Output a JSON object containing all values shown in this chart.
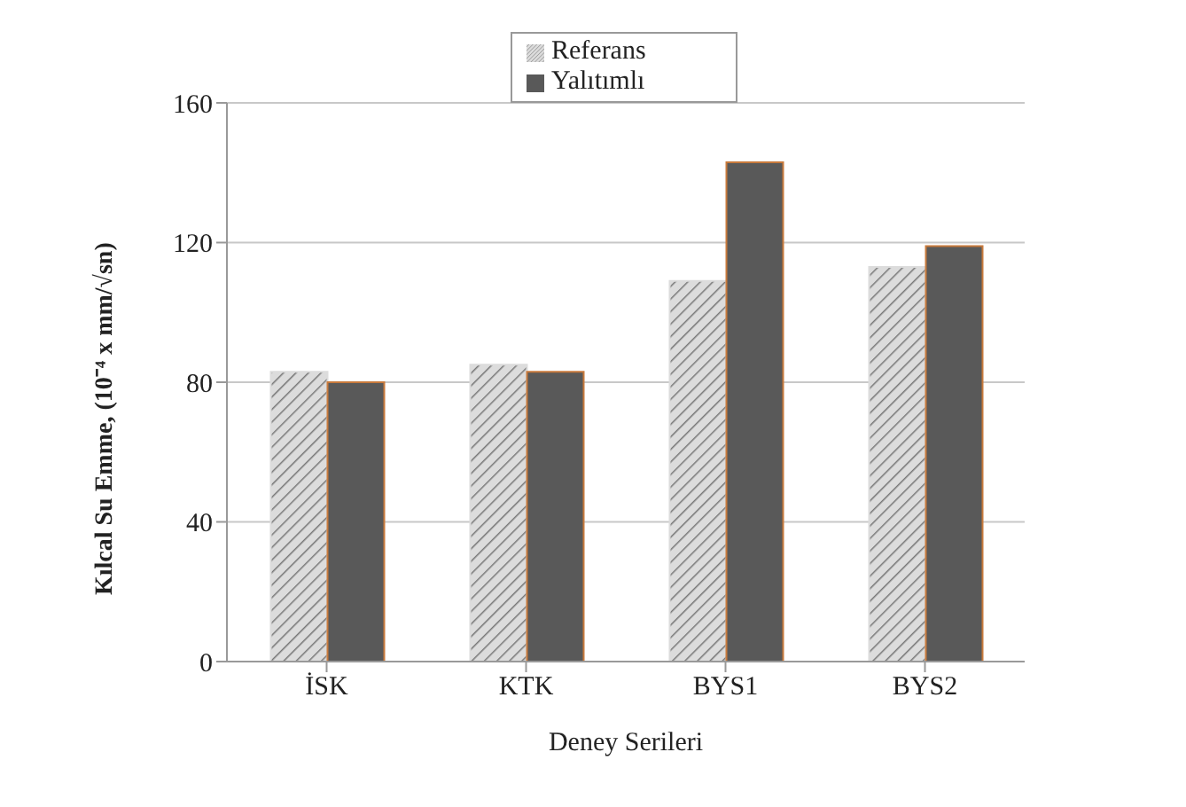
{
  "chart_data": {
    "type": "bar",
    "xlabel": "Deney Serileri",
    "ylabel": "Kılcal Su Emme, (10⁻⁴ x mm/√sn)",
    "categories": [
      "İSK",
      "KTK",
      "BYS1",
      "BYS2"
    ],
    "series": [
      {
        "name": "Referans",
        "color": "#dcdcdc",
        "values": [
          83,
          85,
          109,
          113
        ]
      },
      {
        "name": "Yalıtımlı",
        "color": "#595959",
        "values": [
          80,
          83,
          143,
          119
        ]
      }
    ],
    "ylim": [
      0,
      160
    ],
    "yticks": [
      0,
      40,
      80,
      120,
      160
    ],
    "grid": "y",
    "legend": "top"
  }
}
